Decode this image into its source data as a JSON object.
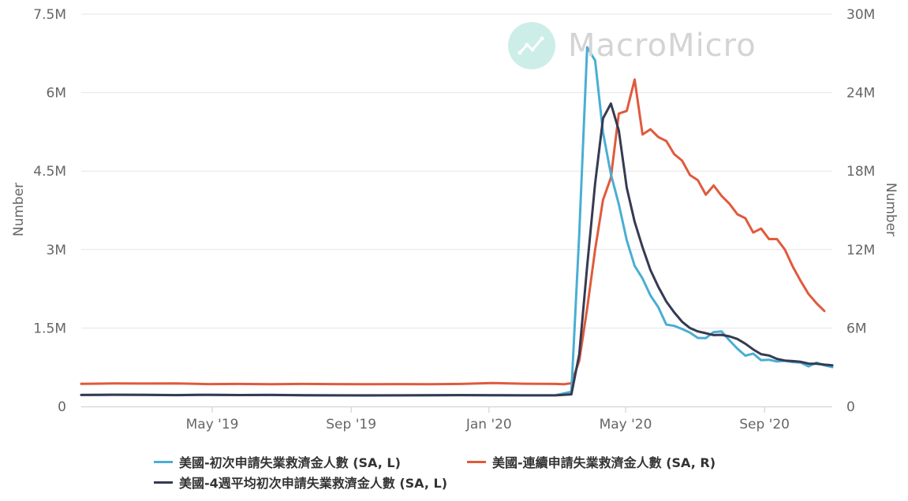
{
  "watermark": {
    "text": "MacroMicro",
    "icon": "trend-chart-icon"
  },
  "chart_data": {
    "type": "line",
    "xlabel": "",
    "ylabel_left": "Number",
    "ylabel_right": "Number",
    "ylim_left": [
      0,
      7500000
    ],
    "ylim_right": [
      0,
      30000000
    ],
    "xlim": [
      "2019-01-05",
      "2020-10-31"
    ],
    "left_ticks": [
      "0",
      "1.5M",
      "3M",
      "4.5M",
      "6M",
      "7.5M"
    ],
    "right_ticks": [
      "0",
      "6M",
      "12M",
      "18M",
      "24M",
      "30M"
    ],
    "x_ticks": [
      {
        "date": "2019-05-01",
        "label": "May '19"
      },
      {
        "date": "2019-09-01",
        "label": "Sep '19"
      },
      {
        "date": "2020-01-01",
        "label": "Jan '20"
      },
      {
        "date": "2020-05-01",
        "label": "May '20"
      },
      {
        "date": "2020-09-01",
        "label": "Sep '20"
      }
    ],
    "grid": true,
    "legend_position": "bottom",
    "series": [
      {
        "name": "美國-初次申請失業救濟金人數 (SA, L)",
        "axis": "left",
        "color": "#4aaed3",
        "points": [
          [
            "2019-01-05",
            220000
          ],
          [
            "2019-02-02",
            225000
          ],
          [
            "2019-03-02",
            223000
          ],
          [
            "2019-03-30",
            218000
          ],
          [
            "2019-04-27",
            225000
          ],
          [
            "2019-05-25",
            218000
          ],
          [
            "2019-06-22",
            222000
          ],
          [
            "2019-07-20",
            215000
          ],
          [
            "2019-08-17",
            212000
          ],
          [
            "2019-09-14",
            210000
          ],
          [
            "2019-10-12",
            213000
          ],
          [
            "2019-11-09",
            215000
          ],
          [
            "2019-12-07",
            218000
          ],
          [
            "2020-01-04",
            216000
          ],
          [
            "2020-02-01",
            212000
          ],
          [
            "2020-02-29",
            215000
          ],
          [
            "2020-03-14",
            282000
          ],
          [
            "2020-03-21",
            3307000
          ],
          [
            "2020-03-28",
            6867000
          ],
          [
            "2020-04-04",
            6615000
          ],
          [
            "2020-04-11",
            5237000
          ],
          [
            "2020-04-18",
            4442000
          ],
          [
            "2020-04-25",
            3867000
          ],
          [
            "2020-05-02",
            3176000
          ],
          [
            "2020-05-09",
            2687000
          ],
          [
            "2020-05-16",
            2446000
          ],
          [
            "2020-05-23",
            2123000
          ],
          [
            "2020-05-30",
            1897000
          ],
          [
            "2020-06-06",
            1566000
          ],
          [
            "2020-06-13",
            1540000
          ],
          [
            "2020-06-20",
            1482000
          ],
          [
            "2020-06-27",
            1413000
          ],
          [
            "2020-07-04",
            1310000
          ],
          [
            "2020-07-11",
            1307000
          ],
          [
            "2020-07-18",
            1422000
          ],
          [
            "2020-07-25",
            1435000
          ],
          [
            "2020-08-01",
            1263000
          ],
          [
            "2020-08-08",
            1106000
          ],
          [
            "2020-08-15",
            971000
          ],
          [
            "2020-08-22",
            1011000
          ],
          [
            "2020-08-29",
            884000
          ],
          [
            "2020-09-05",
            893000
          ],
          [
            "2020-09-12",
            860000
          ],
          [
            "2020-09-19",
            873000
          ],
          [
            "2020-09-26",
            849000
          ],
          [
            "2020-10-03",
            840000
          ],
          [
            "2020-10-10",
            767000
          ],
          [
            "2020-10-17",
            837000
          ],
          [
            "2020-10-24",
            787000
          ],
          [
            "2020-10-31",
            751000
          ]
        ]
      },
      {
        "name": "美國-連續申請失業救濟金人數 (SA, R)",
        "axis": "right",
        "color": "#e05a3c",
        "points": [
          [
            "2019-01-05",
            1730000
          ],
          [
            "2019-02-02",
            1760000
          ],
          [
            "2019-03-02",
            1750000
          ],
          [
            "2019-03-30",
            1760000
          ],
          [
            "2019-04-27",
            1710000
          ],
          [
            "2019-05-25",
            1720000
          ],
          [
            "2019-06-22",
            1700000
          ],
          [
            "2019-07-20",
            1720000
          ],
          [
            "2019-08-17",
            1710000
          ],
          [
            "2019-09-14",
            1700000
          ],
          [
            "2019-10-12",
            1710000
          ],
          [
            "2019-11-09",
            1700000
          ],
          [
            "2019-12-07",
            1720000
          ],
          [
            "2020-01-04",
            1790000
          ],
          [
            "2020-02-01",
            1740000
          ],
          [
            "2020-02-29",
            1720000
          ],
          [
            "2020-03-07",
            1700000
          ],
          [
            "2020-03-14",
            1780000
          ],
          [
            "2020-03-21",
            3500000
          ],
          [
            "2020-03-28",
            7500000
          ],
          [
            "2020-04-04",
            12000000
          ],
          [
            "2020-04-11",
            15800000
          ],
          [
            "2020-04-18",
            17500000
          ],
          [
            "2020-04-25",
            22400000
          ],
          [
            "2020-05-02",
            22600000
          ],
          [
            "2020-05-09",
            25000000
          ],
          [
            "2020-05-16",
            20800000
          ],
          [
            "2020-05-23",
            21200000
          ],
          [
            "2020-05-30",
            20600000
          ],
          [
            "2020-06-06",
            20300000
          ],
          [
            "2020-06-13",
            19300000
          ],
          [
            "2020-06-20",
            18800000
          ],
          [
            "2020-06-27",
            17700000
          ],
          [
            "2020-07-04",
            17300000
          ],
          [
            "2020-07-11",
            16200000
          ],
          [
            "2020-07-18",
            16900000
          ],
          [
            "2020-07-25",
            16100000
          ],
          [
            "2020-08-01",
            15500000
          ],
          [
            "2020-08-08",
            14700000
          ],
          [
            "2020-08-15",
            14400000
          ],
          [
            "2020-08-22",
            13300000
          ],
          [
            "2020-08-29",
            13600000
          ],
          [
            "2020-09-05",
            12800000
          ],
          [
            "2020-09-12",
            12800000
          ],
          [
            "2020-09-19",
            12000000
          ],
          [
            "2020-09-26",
            10700000
          ],
          [
            "2020-10-03",
            9600000
          ],
          [
            "2020-10-10",
            8600000
          ],
          [
            "2020-10-17",
            7900000
          ],
          [
            "2020-10-24",
            7300000
          ]
        ]
      },
      {
        "name": "美國-4週平均初次申請失業救濟金人數 (SA, L)",
        "axis": "left",
        "color": "#363a52",
        "points": [
          [
            "2019-01-05",
            220000
          ],
          [
            "2019-02-02",
            224000
          ],
          [
            "2019-03-02",
            222000
          ],
          [
            "2019-03-30",
            217000
          ],
          [
            "2019-04-27",
            223000
          ],
          [
            "2019-05-25",
            218000
          ],
          [
            "2019-06-22",
            220000
          ],
          [
            "2019-07-20",
            215000
          ],
          [
            "2019-08-17",
            213000
          ],
          [
            "2019-09-14",
            212000
          ],
          [
            "2019-10-12",
            213000
          ],
          [
            "2019-11-09",
            215000
          ],
          [
            "2019-12-07",
            217000
          ],
          [
            "2020-01-04",
            216000
          ],
          [
            "2020-02-01",
            212000
          ],
          [
            "2020-02-29",
            213000
          ],
          [
            "2020-03-14",
            232000
          ],
          [
            "2020-03-21",
            1002000
          ],
          [
            "2020-03-28",
            2682000
          ],
          [
            "2020-04-04",
            4265000
          ],
          [
            "2020-04-11",
            5507000
          ],
          [
            "2020-04-18",
            5790000
          ],
          [
            "2020-04-25",
            5277000
          ],
          [
            "2020-05-02",
            4180000
          ],
          [
            "2020-05-09",
            3530000
          ],
          [
            "2020-05-16",
            3044000
          ],
          [
            "2020-05-23",
            2608000
          ],
          [
            "2020-05-30",
            2288000
          ],
          [
            "2020-06-06",
            2008000
          ],
          [
            "2020-06-13",
            1800000
          ],
          [
            "2020-06-20",
            1620000
          ],
          [
            "2020-06-27",
            1500000
          ],
          [
            "2020-07-04",
            1435000
          ],
          [
            "2020-07-11",
            1400000
          ],
          [
            "2020-07-18",
            1365000
          ],
          [
            "2020-07-25",
            1369000
          ],
          [
            "2020-08-01",
            1340000
          ],
          [
            "2020-08-08",
            1290000
          ],
          [
            "2020-08-15",
            1200000
          ],
          [
            "2020-08-22",
            1090000
          ],
          [
            "2020-08-29",
            1000000
          ],
          [
            "2020-09-05",
            975000
          ],
          [
            "2020-09-12",
            910000
          ],
          [
            "2020-09-19",
            878000
          ],
          [
            "2020-09-26",
            868000
          ],
          [
            "2020-10-03",
            854000
          ],
          [
            "2020-10-10",
            820000
          ],
          [
            "2020-10-17",
            816000
          ],
          [
            "2020-10-24",
            800000
          ],
          [
            "2020-10-31",
            787000
          ]
        ]
      }
    ]
  }
}
